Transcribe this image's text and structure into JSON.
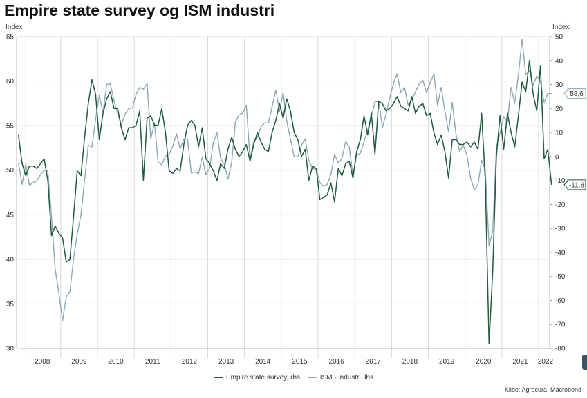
{
  "title": "Empire state survey og ISM industri",
  "source": "Kilde: Agrocura, Macrobond",
  "chart_data": {
    "type": "line",
    "title": "Empire state survey og ISM industri",
    "left_axis": {
      "label": "Index",
      "min": 30,
      "max": 65,
      "ticks": [
        "30",
        "35",
        "40",
        "45",
        "50",
        "55",
        "60",
        "65"
      ]
    },
    "right_axis": {
      "label": "Index",
      "min": -80,
      "max": 50,
      "ticks": [
        "-80",
        "-70",
        "-60",
        "-50",
        "-40",
        "-30",
        "-20",
        "-10",
        "0",
        "10",
        "20",
        "30",
        "40",
        "50"
      ]
    },
    "x_range": [
      2007.8,
      2022.3
    ],
    "x_ticks": [
      "2008",
      "2009",
      "2010",
      "2011",
      "2012",
      "2013",
      "2014",
      "2015",
      "2016",
      "2017",
      "2018",
      "2019",
      "2020",
      "2021",
      "2022"
    ],
    "grid": true,
    "legend_position": "bottom",
    "colors": {
      "empire": "#1e5a3c",
      "ism": "#8ba7b8"
    },
    "series": [
      {
        "name": "Empire state survey, rhs",
        "axis": "right",
        "color": "#1e5a3c",
        "last_label": "-11,8",
        "points": [
          [
            2007.85,
            9
          ],
          [
            2007.95,
            -3
          ],
          [
            2008.05,
            -8
          ],
          [
            2008.15,
            -4
          ],
          [
            2008.25,
            -4
          ],
          [
            2008.35,
            -5
          ],
          [
            2008.45,
            -3
          ],
          [
            2008.55,
            -1
          ],
          [
            2008.65,
            -10
          ],
          [
            2008.75,
            -33
          ],
          [
            2008.85,
            -29
          ],
          [
            2008.95,
            -32
          ],
          [
            2009.05,
            -34
          ],
          [
            2009.15,
            -44
          ],
          [
            2009.25,
            -43
          ],
          [
            2009.35,
            -25
          ],
          [
            2009.45,
            -6
          ],
          [
            2009.55,
            -8
          ],
          [
            2009.65,
            8
          ],
          [
            2009.75,
            22
          ],
          [
            2009.85,
            32
          ],
          [
            2009.95,
            26
          ],
          [
            2010.05,
            7
          ],
          [
            2010.15,
            18
          ],
          [
            2010.25,
            24
          ],
          [
            2010.35,
            27
          ],
          [
            2010.45,
            20
          ],
          [
            2010.55,
            20
          ],
          [
            2010.65,
            12
          ],
          [
            2010.75,
            7
          ],
          [
            2010.85,
            12
          ],
          [
            2010.95,
            12
          ],
          [
            2011.05,
            13
          ],
          [
            2011.15,
            19
          ],
          [
            2011.25,
            -10
          ],
          [
            2011.35,
            16
          ],
          [
            2011.45,
            17
          ],
          [
            2011.55,
            13
          ],
          [
            2011.65,
            13
          ],
          [
            2011.75,
            20
          ],
          [
            2011.85,
            10
          ],
          [
            2011.95,
            -6
          ],
          [
            2012.05,
            -7
          ],
          [
            2012.15,
            -5
          ],
          [
            2012.25,
            -6
          ],
          [
            2012.35,
            5
          ],
          [
            2012.45,
            13
          ],
          [
            2012.55,
            15
          ],
          [
            2012.65,
            13
          ],
          [
            2012.75,
            4
          ],
          [
            2012.85,
            12
          ],
          [
            2012.95,
            -1
          ],
          [
            2013.05,
            -3
          ],
          [
            2013.15,
            -6
          ],
          [
            2013.25,
            -10
          ],
          [
            2013.35,
            -3
          ],
          [
            2013.45,
            -5
          ],
          [
            2013.55,
            3
          ],
          [
            2013.65,
            8
          ],
          [
            2013.75,
            3
          ],
          [
            2013.85,
            0
          ],
          [
            2013.95,
            2
          ],
          [
            2014.05,
            5
          ],
          [
            2014.15,
            -2
          ],
          [
            2014.25,
            5
          ],
          [
            2014.35,
            10
          ],
          [
            2014.45,
            6
          ],
          [
            2014.55,
            3
          ],
          [
            2014.65,
            2
          ],
          [
            2014.75,
            10
          ],
          [
            2014.85,
            15
          ],
          [
            2014.95,
            22
          ],
          [
            2015.05,
            16
          ],
          [
            2015.15,
            24
          ],
          [
            2015.25,
            19
          ],
          [
            2015.35,
            10
          ],
          [
            2015.45,
            7
          ],
          [
            2015.55,
            0
          ],
          [
            2015.65,
            3
          ],
          [
            2015.75,
            -10
          ],
          [
            2015.85,
            -4
          ],
          [
            2015.95,
            -5
          ],
          [
            2016.05,
            -18
          ],
          [
            2016.15,
            -17
          ],
          [
            2016.25,
            -16
          ],
          [
            2016.35,
            -11
          ],
          [
            2016.45,
            -19
          ],
          [
            2016.55,
            -5
          ],
          [
            2016.65,
            -8
          ],
          [
            2016.75,
            -3
          ],
          [
            2016.85,
            -2
          ],
          [
            2016.95,
            -9
          ],
          [
            2017.05,
            2
          ],
          [
            2017.15,
            7
          ],
          [
            2017.25,
            17
          ],
          [
            2017.35,
            9
          ],
          [
            2017.45,
            18
          ],
          [
            2017.55,
            1
          ],
          [
            2017.65,
            23
          ],
          [
            2017.75,
            22
          ],
          [
            2017.85,
            19
          ],
          [
            2017.95,
            20
          ],
          [
            2018.05,
            22
          ],
          [
            2018.15,
            25
          ],
          [
            2018.25,
            21
          ],
          [
            2018.35,
            20
          ],
          [
            2018.45,
            19
          ],
          [
            2018.55,
            25
          ],
          [
            2018.65,
            18
          ],
          [
            2018.75,
            21
          ],
          [
            2018.85,
            22
          ],
          [
            2018.95,
            17
          ],
          [
            2019.05,
            18
          ],
          [
            2019.15,
            10
          ],
          [
            2019.25,
            5
          ],
          [
            2019.35,
            9
          ],
          [
            2019.45,
            2
          ],
          [
            2019.55,
            -9
          ],
          [
            2019.65,
            7
          ],
          [
            2019.75,
            7
          ],
          [
            2019.85,
            5
          ],
          [
            2019.95,
            5
          ],
          [
            2020.05,
            6
          ],
          [
            2020.15,
            4
          ],
          [
            2020.25,
            6
          ],
          [
            2020.35,
            3
          ],
          [
            2020.45,
            18
          ],
          [
            2020.55,
            -10
          ],
          [
            2020.65,
            -78
          ],
          [
            2020.75,
            -48
          ],
          [
            2020.85,
            0
          ],
          [
            2020.95,
            17
          ],
          [
            2021.05,
            3
          ],
          [
            2021.15,
            18
          ],
          [
            2021.25,
            10
          ],
          [
            2021.35,
            4
          ],
          [
            2021.45,
            17
          ],
          [
            2021.55,
            31
          ],
          [
            2021.65,
            27
          ],
          [
            2021.75,
            40
          ],
          [
            2021.85,
            26
          ],
          [
            2021.95,
            19
          ],
          [
            2022.05,
            38
          ],
          [
            2022.15,
            -1
          ],
          [
            2022.25,
            3
          ],
          [
            2022.35,
            -11.8
          ]
        ]
      },
      {
        "name": "ISM - industri, lhs",
        "axis": "left",
        "color": "#8ba7b8",
        "last_label": "58,6",
        "points": [
          [
            2007.85,
            50.8
          ],
          [
            2007.95,
            48.4
          ],
          [
            2008.05,
            50.7
          ],
          [
            2008.15,
            48.3
          ],
          [
            2008.25,
            48.6
          ],
          [
            2008.35,
            48.8
          ],
          [
            2008.45,
            49.5
          ],
          [
            2008.55,
            50
          ],
          [
            2008.65,
            49.9
          ],
          [
            2008.75,
            44.8
          ],
          [
            2008.85,
            38.9
          ],
          [
            2008.95,
            36.2
          ],
          [
            2009.05,
            33.1
          ],
          [
            2009.15,
            35.8
          ],
          [
            2009.25,
            36.3
          ],
          [
            2009.35,
            40.1
          ],
          [
            2009.45,
            42.8
          ],
          [
            2009.55,
            45
          ],
          [
            2009.65,
            48.9
          ],
          [
            2009.75,
            52.8
          ],
          [
            2009.85,
            52.6
          ],
          [
            2009.95,
            55.7
          ],
          [
            2010.05,
            58.4
          ],
          [
            2010.15,
            56.5
          ],
          [
            2010.25,
            59.6
          ],
          [
            2010.35,
            59.7
          ],
          [
            2010.45,
            57.8
          ],
          [
            2010.55,
            56.4
          ],
          [
            2010.65,
            55.1
          ],
          [
            2010.75,
            56.3
          ],
          [
            2010.85,
            56.9
          ],
          [
            2010.95,
            57
          ],
          [
            2011.05,
            58.5
          ],
          [
            2011.15,
            59.3
          ],
          [
            2011.25,
            59.1
          ],
          [
            2011.35,
            59.7
          ],
          [
            2011.45,
            53.5
          ],
          [
            2011.55,
            55.3
          ],
          [
            2011.65,
            50.9
          ],
          [
            2011.75,
            50.6
          ],
          [
            2011.85,
            51.6
          ],
          [
            2011.95,
            51.8
          ],
          [
            2012.05,
            52.7
          ],
          [
            2012.15,
            54.1
          ],
          [
            2012.25,
            52.4
          ],
          [
            2012.35,
            53.5
          ],
          [
            2012.45,
            53.5
          ],
          [
            2012.55,
            49.7
          ],
          [
            2012.65,
            49.8
          ],
          [
            2012.75,
            49.6
          ],
          [
            2012.85,
            51.5
          ],
          [
            2012.95,
            49.5
          ],
          [
            2013.05,
            50.2
          ],
          [
            2013.15,
            53.1
          ],
          [
            2013.25,
            54.2
          ],
          [
            2013.35,
            51.3
          ],
          [
            2013.45,
            50.7
          ],
          [
            2013.55,
            49
          ],
          [
            2013.65,
            50.9
          ],
          [
            2013.75,
            55.4
          ],
          [
            2013.85,
            56.2
          ],
          [
            2013.95,
            56.4
          ],
          [
            2014.05,
            57.3
          ],
          [
            2014.15,
            51.3
          ],
          [
            2014.25,
            53.2
          ],
          [
            2014.35,
            53.7
          ],
          [
            2014.45,
            54.9
          ],
          [
            2014.55,
            55.3
          ],
          [
            2014.65,
            55.3
          ],
          [
            2014.75,
            57.1
          ],
          [
            2014.85,
            59
          ],
          [
            2014.95,
            56.6
          ],
          [
            2015.05,
            58.7
          ],
          [
            2015.15,
            55.5
          ],
          [
            2015.25,
            53.5
          ],
          [
            2015.35,
            51.5
          ],
          [
            2015.45,
            51.5
          ],
          [
            2015.55,
            52.8
          ],
          [
            2015.65,
            53.5
          ],
          [
            2015.75,
            51.1
          ],
          [
            2015.85,
            50.2
          ],
          [
            2015.95,
            50.1
          ],
          [
            2016.05,
            48.6
          ],
          [
            2016.15,
            48.2
          ],
          [
            2016.25,
            48.4
          ],
          [
            2016.35,
            49.5
          ],
          [
            2016.45,
            51.8
          ],
          [
            2016.55,
            50.8
          ],
          [
            2016.65,
            51.3
          ],
          [
            2016.75,
            53.2
          ],
          [
            2016.85,
            52.6
          ],
          [
            2016.95,
            49.4
          ],
          [
            2017.05,
            51.7
          ],
          [
            2017.15,
            51.9
          ],
          [
            2017.25,
            53.2
          ],
          [
            2017.35,
            54.5
          ],
          [
            2017.45,
            56
          ],
          [
            2017.55,
            57.7
          ],
          [
            2017.65,
            57.7
          ],
          [
            2017.75,
            54.8
          ],
          [
            2017.85,
            56.3
          ],
          [
            2017.95,
            58.1
          ],
          [
            2018.05,
            59.7
          ],
          [
            2018.15,
            60.8
          ],
          [
            2018.25,
            58.7
          ],
          [
            2018.35,
            59.3
          ],
          [
            2018.45,
            57.3
          ],
          [
            2018.55,
            57.9
          ],
          [
            2018.65,
            58.8
          ],
          [
            2018.75,
            59.7
          ],
          [
            2018.85,
            60.1
          ],
          [
            2018.95,
            58.7
          ],
          [
            2019.05,
            59.8
          ],
          [
            2019.15,
            60.8
          ],
          [
            2019.25,
            57.3
          ],
          [
            2019.35,
            59.3
          ],
          [
            2019.45,
            56.6
          ],
          [
            2019.55,
            54.3
          ],
          [
            2019.65,
            57.6
          ],
          [
            2019.75,
            54.1
          ],
          [
            2019.85,
            52.1
          ],
          [
            2019.95,
            52.8
          ],
          [
            2020.05,
            51.7
          ],
          [
            2020.15,
            49.1
          ],
          [
            2020.25,
            47.8
          ],
          [
            2020.35,
            48.4
          ],
          [
            2020.45,
            51.1
          ],
          [
            2020.55,
            50.1
          ],
          [
            2020.65,
            41.5
          ],
          [
            2020.75,
            43.1
          ],
          [
            2020.85,
            52.6
          ],
          [
            2020.95,
            54.2
          ],
          [
            2021.05,
            56
          ],
          [
            2021.15,
            55.4
          ],
          [
            2021.25,
            59.3
          ],
          [
            2021.35,
            57.5
          ],
          [
            2021.45,
            60.7
          ],
          [
            2021.55,
            64.7
          ],
          [
            2021.65,
            60.7
          ],
          [
            2021.75,
            61.2
          ],
          [
            2021.85,
            59.5
          ],
          [
            2021.95,
            60.6
          ],
          [
            2022.05,
            59.9
          ],
          [
            2022.15,
            57.6
          ],
          [
            2022.25,
            58.6
          ],
          [
            2022.35,
            58.6
          ]
        ]
      }
    ]
  }
}
